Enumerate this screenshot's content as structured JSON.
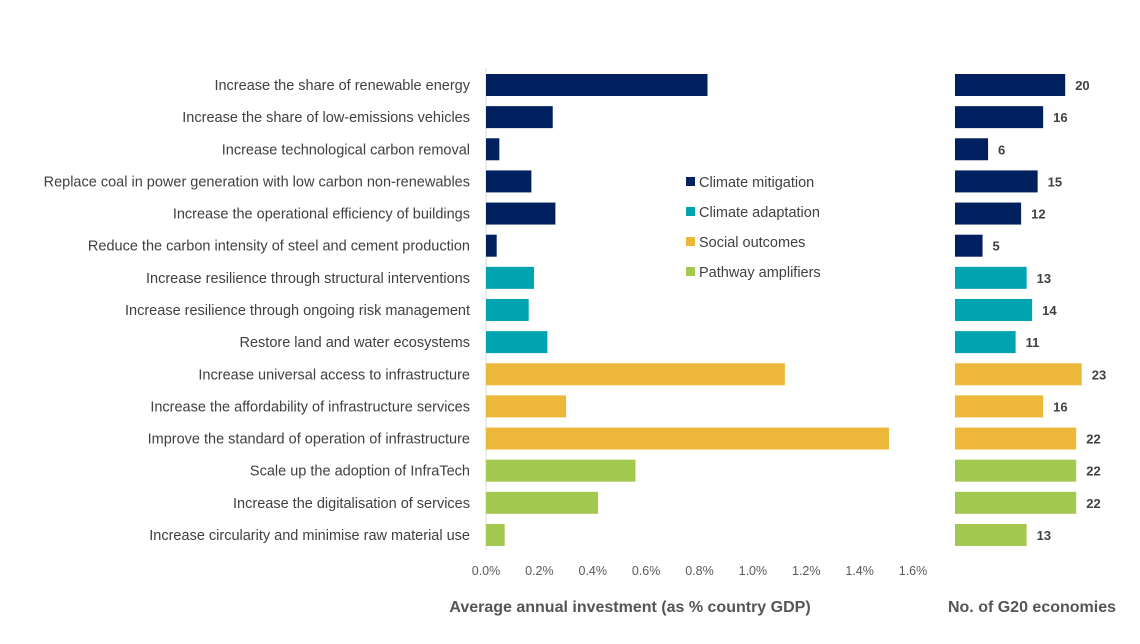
{
  "chart_data": [
    {
      "type": "bar",
      "orientation": "horizontal",
      "xlabel": "Average annual investment (as % country GDP)",
      "xlim": [
        0,
        1.6
      ],
      "xticks": [
        "0.0%",
        "0.2%",
        "0.4%",
        "0.6%",
        "0.8%",
        "1.0%",
        "1.2%",
        "1.4%",
        "1.6%"
      ],
      "grid": false,
      "legend_position": "center-right",
      "categories": [
        "Increase the share of renewable energy",
        "Increase the share of low-emissions vehicles",
        "Increase technological carbon removal",
        "Replace coal in power generation with low carbon non-renewables",
        "Increase the operational efficiency of buildings",
        "Reduce the carbon intensity of steel and cement production",
        "Increase resilience through structural interventions",
        "Increase resilience through ongoing risk management",
        "Restore land and water ecosystems",
        "Increase universal access to infrastructure",
        "Increase the affordability of infrastructure services",
        "Improve the standard of operation of infrastructure",
        "Scale up the adoption of InfraTech",
        "Increase the digitalisation of services",
        "Increase circularity and minimise raw material use"
      ],
      "values": [
        0.83,
        0.25,
        0.05,
        0.17,
        0.26,
        0.04,
        0.18,
        0.16,
        0.23,
        1.12,
        0.3,
        1.51,
        0.56,
        0.42,
        0.07
      ],
      "groups": [
        0,
        0,
        0,
        0,
        0,
        0,
        1,
        1,
        1,
        2,
        2,
        2,
        3,
        3,
        3
      ],
      "legend": [
        {
          "name": "Climate mitigation",
          "color": "#002060"
        },
        {
          "name": "Climate adaptation",
          "color": "#00A3B0"
        },
        {
          "name": "Social outcomes",
          "color": "#EDB83A"
        },
        {
          "name": "Pathway amplifiers",
          "color": "#A3C850"
        }
      ]
    },
    {
      "type": "bar",
      "orientation": "horizontal",
      "xlabel": "No. of G20 economies",
      "values": [
        20,
        16,
        6,
        15,
        12,
        5,
        13,
        14,
        11,
        23,
        16,
        22,
        22,
        22,
        13
      ],
      "data_labels": true
    }
  ]
}
